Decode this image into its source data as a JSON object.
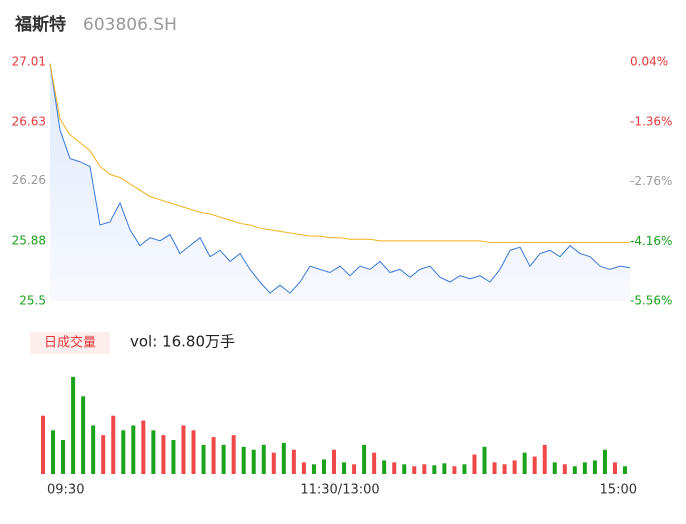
{
  "header": {
    "name": "福斯特",
    "code": "603806.SH"
  },
  "chart_data": {
    "type": "intraday",
    "ylim": [
      25.5,
      27.01
    ],
    "yticks": [
      27.01,
      26.63,
      26.26,
      25.88,
      25.5
    ],
    "y2lim": [
      -5.56,
      0.04
    ],
    "y2ticks": [
      {
        "value": 0.04,
        "label": "0.04%"
      },
      {
        "value": -1.36,
        "label": "-1.36%"
      },
      {
        "value": -2.76,
        "label": "-2.76%"
      },
      {
        "value": -4.16,
        "label": "-4.16%"
      },
      {
        "value": -5.56,
        "label": "-5.56%"
      }
    ],
    "ytick_colors": [
      "#e8383d",
      "#e8383d",
      "#999999",
      "#1ba11b",
      "#1ba11b"
    ],
    "xlim": [
      0,
      240
    ],
    "xticks": [
      {
        "value": 0,
        "label": "09:30"
      },
      {
        "value": 120,
        "label": "11:30/13:00"
      },
      {
        "value": 240,
        "label": "15:00"
      }
    ],
    "series": [
      {
        "name": "price",
        "color": "#3a78d8",
        "values": [
          27.0,
          26.58,
          26.4,
          26.38,
          26.35,
          25.98,
          26.0,
          26.12,
          25.95,
          25.85,
          25.9,
          25.88,
          25.92,
          25.8,
          25.85,
          25.9,
          25.78,
          25.82,
          25.75,
          25.8,
          25.7,
          25.62,
          25.55,
          25.6,
          25.55,
          25.62,
          25.72,
          25.7,
          25.68,
          25.72,
          25.66,
          25.72,
          25.7,
          25.75,
          25.68,
          25.7,
          25.65,
          25.7,
          25.72,
          25.65,
          25.62,
          25.66,
          25.64,
          25.66,
          25.62,
          25.7,
          25.82,
          25.84,
          25.72,
          25.8,
          25.82,
          25.78,
          25.85,
          25.8,
          25.78,
          25.72,
          25.7,
          25.72,
          25.71
        ]
      },
      {
        "name": "avg",
        "color": "#f2b01e",
        "values": [
          27.0,
          26.65,
          26.55,
          26.5,
          26.45,
          26.35,
          26.3,
          26.28,
          26.24,
          26.2,
          26.16,
          26.14,
          26.12,
          26.1,
          26.08,
          26.06,
          26.05,
          26.03,
          26.01,
          25.99,
          25.98,
          25.96,
          25.95,
          25.94,
          25.93,
          25.92,
          25.91,
          25.91,
          25.9,
          25.9,
          25.89,
          25.89,
          25.89,
          25.88,
          25.88,
          25.88,
          25.88,
          25.88,
          25.88,
          25.88,
          25.88,
          25.88,
          25.88,
          25.88,
          25.87,
          25.87,
          25.87,
          25.87,
          25.87,
          25.87,
          25.87,
          25.87,
          25.87,
          25.87,
          25.87,
          25.87,
          25.87,
          25.87,
          25.87
        ]
      }
    ],
    "volume": {
      "legend": "日成交量",
      "label": "vol: 16.80万手",
      "up_color": "#f04848",
      "down_color": "#1aa31a",
      "vlim": [
        0,
        105
      ],
      "values": [
        60,
        45,
        35,
        100,
        80,
        50,
        40,
        60,
        45,
        50,
        55,
        45,
        40,
        35,
        50,
        45,
        30,
        38,
        30,
        40,
        28,
        25,
        30,
        22,
        32,
        25,
        12,
        10,
        15,
        25,
        12,
        10,
        30,
        22,
        14,
        12,
        10,
        8,
        10,
        9,
        11,
        8,
        10,
        20,
        28,
        12,
        10,
        14,
        22,
        18,
        30,
        12,
        10,
        8,
        12,
        14,
        25,
        12,
        8
      ]
    }
  }
}
